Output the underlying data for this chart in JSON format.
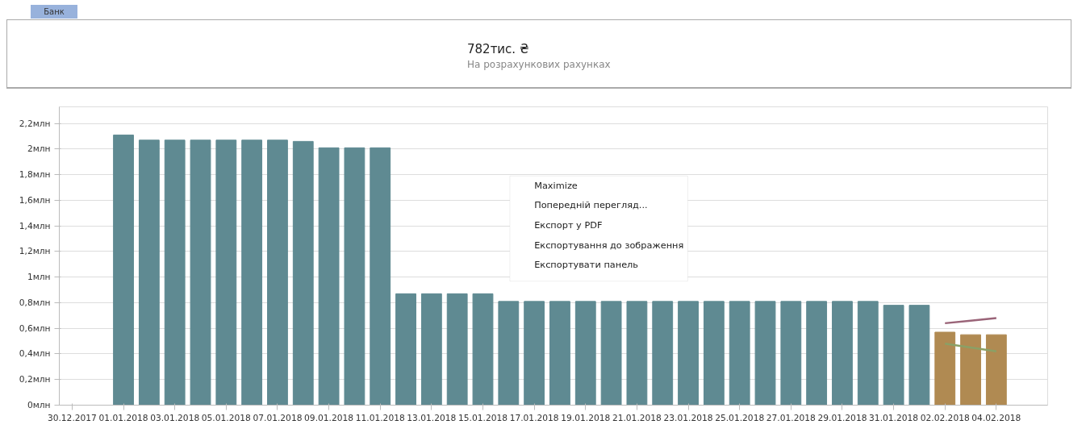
{
  "chart_data": {
    "type": "bar",
    "title": "782тис. ₴",
    "subtitle": "На розрахункових рахунках",
    "annotations": [
      "Банк",
      "Maximize",
      "Попередній перегляд...",
      "Експорт у PDF",
      "Експортування до зображення",
      "Експортувати панель"
    ],
    "x": [
      "2018-01-01",
      "2018-01-02",
      "2018-01-03",
      "2018-01-04",
      "2018-01-05",
      "2018-01-06",
      "2018-01-07",
      "2018-01-08",
      "2018-01-09",
      "2018-01-10",
      "2018-01-11",
      "2018-01-12",
      "2018-01-13",
      "2018-01-14",
      "2018-01-15",
      "2018-01-16",
      "2018-01-17",
      "2018-01-18",
      "2018-01-19",
      "2018-01-20",
      "2018-01-21",
      "2018-01-22",
      "2018-01-23",
      "2018-01-24",
      "2018-01-25",
      "2018-01-26",
      "2018-01-27",
      "2018-01-28",
      "2018-01-29",
      "2018-01-30",
      "2018-01-31",
      "2018-02-01",
      "2018-02-02",
      "2018-02-03",
      "2018-02-04"
    ],
    "series": [
      {
        "values": [
          2.11,
          2.07,
          2.07,
          2.07,
          2.07,
          2.07,
          2.07,
          2.06,
          2.01,
          2.01,
          2.01,
          0.87,
          0.87,
          0.87,
          0.87,
          0.81,
          0.81,
          0.81,
          0.81,
          0.81,
          0.81,
          0.81,
          0.81,
          0.81,
          0.81,
          0.81,
          0.81,
          0.81,
          0.81,
          0.81,
          0.78,
          0.78,
          0.57,
          0.55,
          0.55
        ],
        "colors": [
          "#5f8a92",
          "#5f8a92",
          "#5f8a92",
          "#5f8a92",
          "#5f8a92",
          "#5f8a92",
          "#5f8a92",
          "#5f8a92",
          "#5f8a92",
          "#5f8a92",
          "#5f8a92",
          "#5f8a92",
          "#5f8a92",
          "#5f8a92",
          "#5f8a92",
          "#5f8a92",
          "#5f8a92",
          "#5f8a92",
          "#5f8a92",
          "#5f8a92",
          "#5f8a92",
          "#5f8a92",
          "#5f8a92",
          "#5f8a92",
          "#5f8a92",
          "#5f8a92",
          "#5f8a92",
          "#5f8a92",
          "#5f8a92",
          "#5f8a92",
          "#5f8a92",
          "#5f8a92",
          "#b08a52",
          "#b08a52",
          "#b08a52"
        ]
      },
      {
        "type": "line",
        "color": "#9a6478",
        "x": [
          "2018-02-02",
          "2018-02-03",
          "2018-02-04"
        ],
        "values": [
          0.64,
          0.66,
          0.68
        ]
      },
      {
        "type": "line",
        "color": "#8aa066",
        "x": [
          "2018-02-02",
          "2018-02-03",
          "2018-02-04"
        ],
        "values": [
          0.48,
          0.45,
          0.42
        ]
      }
    ],
    "xlim": [
      "2017-12-29T12:00",
      "2018-02-06"
    ],
    "xticks": [
      {
        "value": "2017-12-30",
        "label": "30.12.2017"
      },
      {
        "value": "2018-01-01",
        "label": "01.01.2018"
      },
      {
        "value": "2018-01-03",
        "label": "03.01.2018"
      },
      {
        "value": "2018-01-05",
        "label": "05.01.2018"
      },
      {
        "value": "2018-01-07",
        "label": "07.01.2018"
      },
      {
        "value": "2018-01-09",
        "label": "09.01.2018"
      },
      {
        "value": "2018-01-11",
        "label": "11.01.2018"
      },
      {
        "value": "2018-01-13",
        "label": "13.01.2018"
      },
      {
        "value": "2018-01-15",
        "label": "15.01.2018"
      },
      {
        "value": "2018-01-17",
        "label": "17.01.2018"
      },
      {
        "value": "2018-01-19",
        "label": "19.01.2018"
      },
      {
        "value": "2018-01-21",
        "label": "21.01.2018"
      },
      {
        "value": "2018-01-23",
        "label": "23.01.2018"
      },
      {
        "value": "2018-01-25",
        "label": "25.01.2018"
      },
      {
        "value": "2018-01-27",
        "label": "27.01.2018"
      },
      {
        "value": "2018-01-29",
        "label": "29.01.2018"
      },
      {
        "value": "2018-01-31",
        "label": "31.01.2018"
      },
      {
        "value": "2018-02-02",
        "label": "02.02.2018"
      },
      {
        "value": "2018-02-04",
        "label": "04.02.2018"
      }
    ],
    "ylim": [
      0,
      2.33
    ],
    "yticks": [
      {
        "value": 0,
        "label": "0млн"
      },
      {
        "value": 0.2,
        "label": "0,2млн"
      },
      {
        "value": 0.4,
        "label": "0,4млн"
      },
      {
        "value": 0.6,
        "label": "0,6млн"
      },
      {
        "value": 0.8,
        "label": "0,8млн"
      },
      {
        "value": 1,
        "label": "1млн"
      },
      {
        "value": 1.2,
        "label": "1,2млн"
      },
      {
        "value": 1.4,
        "label": "1,4млн"
      },
      {
        "value": 1.6,
        "label": "1,6млн"
      },
      {
        "value": 1.8,
        "label": "1,8млн"
      },
      {
        "value": 2,
        "label": "2млн"
      },
      {
        "value": 2.2,
        "label": "2,2млн"
      }
    ],
    "grid": "y"
  }
}
